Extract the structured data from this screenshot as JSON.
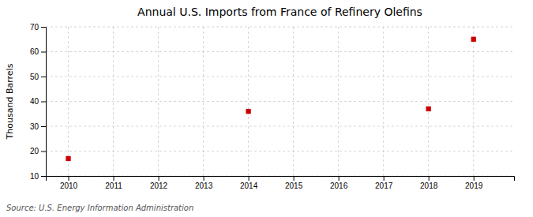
{
  "chart_data": {
    "type": "scatter",
    "title": "Annual U.S. Imports from France of Refinery Olefins",
    "ylabel": "Thousand Barrels",
    "source": "Source: U.S. Energy Information Administration",
    "x": [
      2010,
      2014,
      2018,
      2019
    ],
    "values": [
      17,
      36,
      37,
      65
    ],
    "xlim": [
      2009.5,
      2019.9
    ],
    "ylim": [
      10,
      70
    ],
    "xticks": [
      2010,
      2011,
      2012,
      2013,
      2014,
      2015,
      2016,
      2017,
      2018,
      2019
    ],
    "yticks": [
      10,
      20,
      30,
      40,
      50,
      60,
      70
    ],
    "color": "#cc0000",
    "marker": "square",
    "grid": true
  }
}
